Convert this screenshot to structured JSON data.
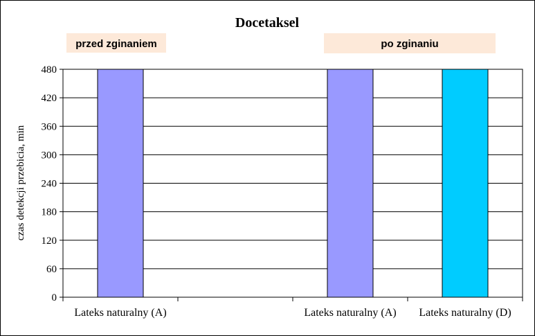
{
  "chart_data": {
    "type": "bar",
    "title": "Docetaksel",
    "ylabel": "czas detekcji przebicia,  min",
    "xlabel": "",
    "ylim": [
      0,
      480
    ],
    "yticks": [
      0,
      60,
      120,
      180,
      240,
      300,
      360,
      420,
      480
    ],
    "grid": true,
    "groups": [
      {
        "label": "przed zginaniem",
        "categories": [
          0,
          1
        ]
      },
      {
        "label": "po zginaniu",
        "categories": [
          2,
          3
        ]
      }
    ],
    "categories": [
      "Lateks naturalny (A)",
      "",
      "Lateks naturalny (A)",
      "Lateks naturalny (D)"
    ],
    "values": [
      480,
      null,
      480,
      480
    ],
    "bar_colors": [
      "#9999ff",
      null,
      "#9999ff",
      "#00ccff"
    ],
    "group_label_bg": "#fde9d9"
  }
}
